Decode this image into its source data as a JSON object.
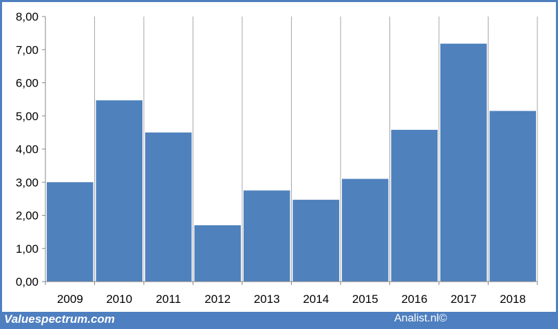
{
  "chart_data": {
    "type": "bar",
    "title": "",
    "xlabel": "",
    "ylabel": "",
    "categories": [
      "2009",
      "2010",
      "2011",
      "2012",
      "2013",
      "2014",
      "2015",
      "2016",
      "2017",
      "2018"
    ],
    "values": [
      3.0,
      5.47,
      4.5,
      1.7,
      2.75,
      2.47,
      3.1,
      4.58,
      7.18,
      5.15
    ],
    "ylim": [
      0,
      8
    ],
    "yticks": [
      "0,00",
      "1,00",
      "2,00",
      "3,00",
      "4,00",
      "5,00",
      "6,00",
      "7,00",
      "8,00"
    ],
    "grid": "vertical lines between categories",
    "bar_color": "#4f81bd",
    "frame_color": "#4e7fc0"
  },
  "footer": {
    "left": "Valuespectrum.com",
    "right": "Analist.nl©"
  }
}
